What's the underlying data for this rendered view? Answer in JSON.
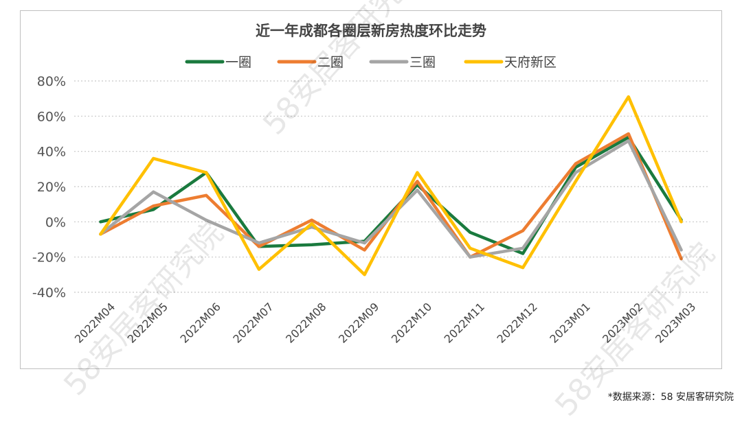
{
  "chart_data": {
    "type": "line",
    "title": "近一年成都各圈层新房热度环比走势",
    "categories": [
      "2022M04",
      "2022M05",
      "2022M06",
      "2022M07",
      "2022M08",
      "2022M09",
      "2022M10",
      "2022M11",
      "2022M12",
      "2023M01",
      "2023M02",
      "2023M03"
    ],
    "y_ticks": [
      "80%",
      "60%",
      "40%",
      "20%",
      "0%",
      "-20%",
      "-40%"
    ],
    "ylim": [
      -40,
      80
    ],
    "y_unit": "%",
    "grid": "horizontal dotted",
    "legend_position": "top",
    "series": [
      {
        "name": "一圈",
        "color": "#1a7a3e",
        "values": [
          0,
          7,
          28,
          -14,
          -13,
          -11,
          21,
          -6,
          -18,
          31,
          48,
          1
        ]
      },
      {
        "name": "二圈",
        "color": "#ed7d31",
        "values": [
          -7,
          9,
          15,
          -14,
          1,
          -16,
          23,
          -20,
          -5,
          33,
          50,
          -21
        ]
      },
      {
        "name": "三圈",
        "color": "#a5a5a5",
        "values": [
          -7,
          17,
          1,
          -12,
          -3,
          -12,
          18,
          -20,
          -15,
          28,
          46,
          -16
        ]
      },
      {
        "name": "天府新区",
        "color": "#ffc000",
        "values": [
          -7,
          36,
          28,
          -27,
          -1,
          -30,
          28,
          -15,
          -26,
          23,
          71,
          0
        ]
      }
    ]
  },
  "source_note": "*数据来源：58 安居客研究院",
  "watermarks": [
    "58安居客研究院",
    "58安居客研究院",
    "58安居客研究院"
  ]
}
